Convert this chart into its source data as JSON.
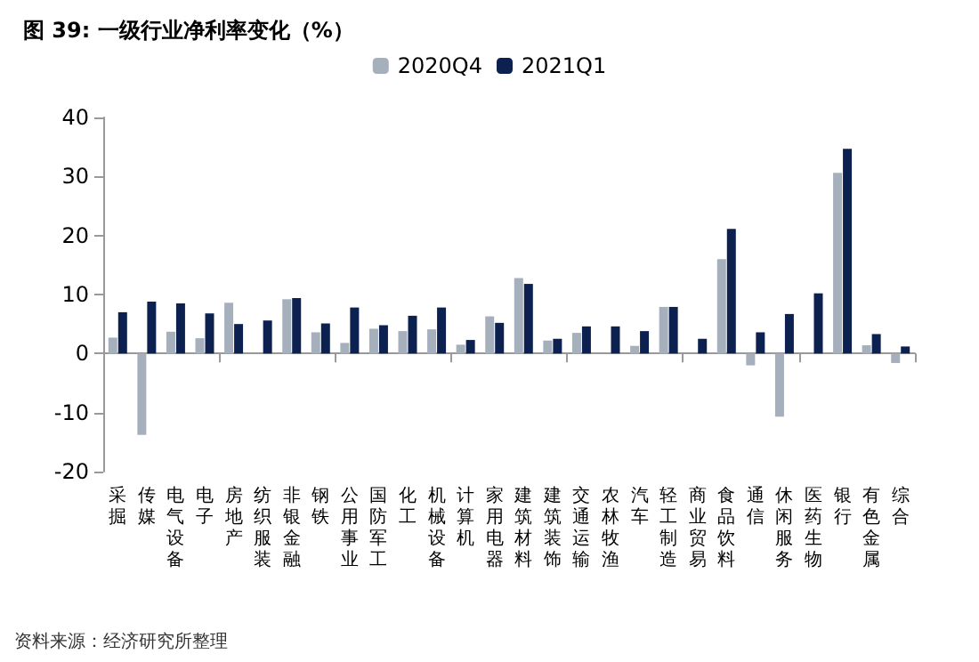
{
  "chart_data": {
    "type": "bar",
    "title": "图 39: 一级行业净利率变化（%）",
    "categories": [
      "采掘",
      "传媒",
      "电气设备",
      "电子",
      "房地产",
      "纺织服装",
      "非银金融",
      "钢铁",
      "公用事业",
      "国防军工",
      "化工",
      "机械设备",
      "计算机",
      "家用电器",
      "建筑材料",
      "建筑装饰",
      "交通运输",
      "农林牧渔",
      "汽车",
      "轻工制造",
      "商业贸易",
      "食品饮料",
      "通信",
      "休闲服务",
      "医药生物",
      "银行",
      "有色金属",
      "综合"
    ],
    "series": [
      {
        "name": "2020Q4",
        "color": "#a6b0bc",
        "values": [
          2.7,
          -13.8,
          3.7,
          2.6,
          8.6,
          null,
          9.2,
          3.6,
          1.8,
          4.2,
          3.8,
          4.1,
          1.5,
          6.3,
          12.8,
          2.2,
          3.5,
          null,
          1.3,
          7.9,
          null,
          16.0,
          -2.0,
          -10.7,
          null,
          30.6,
          1.4,
          -1.6
        ]
      },
      {
        "name": "2021Q1",
        "color": "#0d2150",
        "values": [
          7.0,
          8.8,
          8.5,
          6.8,
          5.0,
          5.6,
          9.4,
          5.1,
          7.8,
          4.8,
          6.4,
          7.8,
          2.3,
          5.2,
          11.8,
          2.5,
          4.6,
          4.6,
          3.8,
          7.9,
          2.5,
          21.1,
          3.6,
          6.7,
          10.2,
          34.7,
          3.3,
          1.2
        ]
      }
    ],
    "ylim": [
      -20,
      40
    ],
    "yticks": [
      -20,
      -10,
      0,
      10,
      20,
      30,
      40
    ],
    "legend": "top",
    "annotations": [
      "资料来源：经济研究所整理"
    ]
  }
}
